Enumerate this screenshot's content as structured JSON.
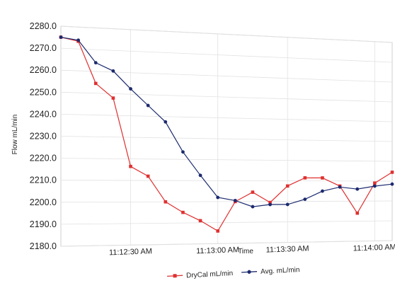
{
  "chart_data": {
    "type": "line",
    "xlabel": "Time",
    "ylabel": "Flow mL/min",
    "ylim": [
      2180,
      2280
    ],
    "y_ticks": [
      "2280.0",
      "2270.0",
      "2260.0",
      "2250.0",
      "2240.0",
      "2230.0",
      "2220.0",
      "2210.0",
      "2200.0",
      "2190.0",
      "2180.0"
    ],
    "y_tick_values": [
      2280,
      2270,
      2260,
      2250,
      2240,
      2230,
      2220,
      2210,
      2200,
      2190,
      2180
    ],
    "x_ticks": [
      "11:12:30 AM",
      "11:13:00 AM",
      "11:13:30 AM",
      "11:14:00 AM"
    ],
    "x_tick_values": [
      4,
      9,
      13,
      18
    ],
    "xlim": [
      0,
      19
    ],
    "grid": true,
    "legend_position": "bottom-center",
    "series": [
      {
        "name": "DryCal mL/min",
        "color": "#e03030",
        "marker": "square",
        "x": [
          0,
          1,
          2,
          3,
          4,
          5,
          6,
          7,
          8,
          9,
          10,
          11,
          12,
          13,
          14,
          15,
          16,
          17,
          18,
          19
        ],
        "values": [
          2275,
          2273.5,
          2254.5,
          2248,
          2216.5,
          2212,
          2200,
          2195,
          2191,
          2186,
          2200,
          2204.5,
          2199.5,
          2207.5,
          2211.5,
          2211.5,
          2207.5,
          2194,
          2209,
          2214.5
        ]
      },
      {
        "name": "Avg. mL/min",
        "color": "#1c2a6e",
        "marker": "circle",
        "x": [
          0,
          1,
          2,
          3,
          4,
          5,
          6,
          7,
          8,
          9,
          10,
          11,
          12,
          13,
          14,
          15,
          16,
          17,
          18,
          19
        ],
        "values": [
          2275,
          2274,
          2264,
          2260.5,
          2252.5,
          2245,
          2237.5,
          2223.5,
          2212.5,
          2202,
          2200.5,
          2197.5,
          2198.5,
          2198.5,
          2201,
          2205,
          2207,
          2206,
          2207.5,
          2208.5
        ]
      }
    ]
  }
}
